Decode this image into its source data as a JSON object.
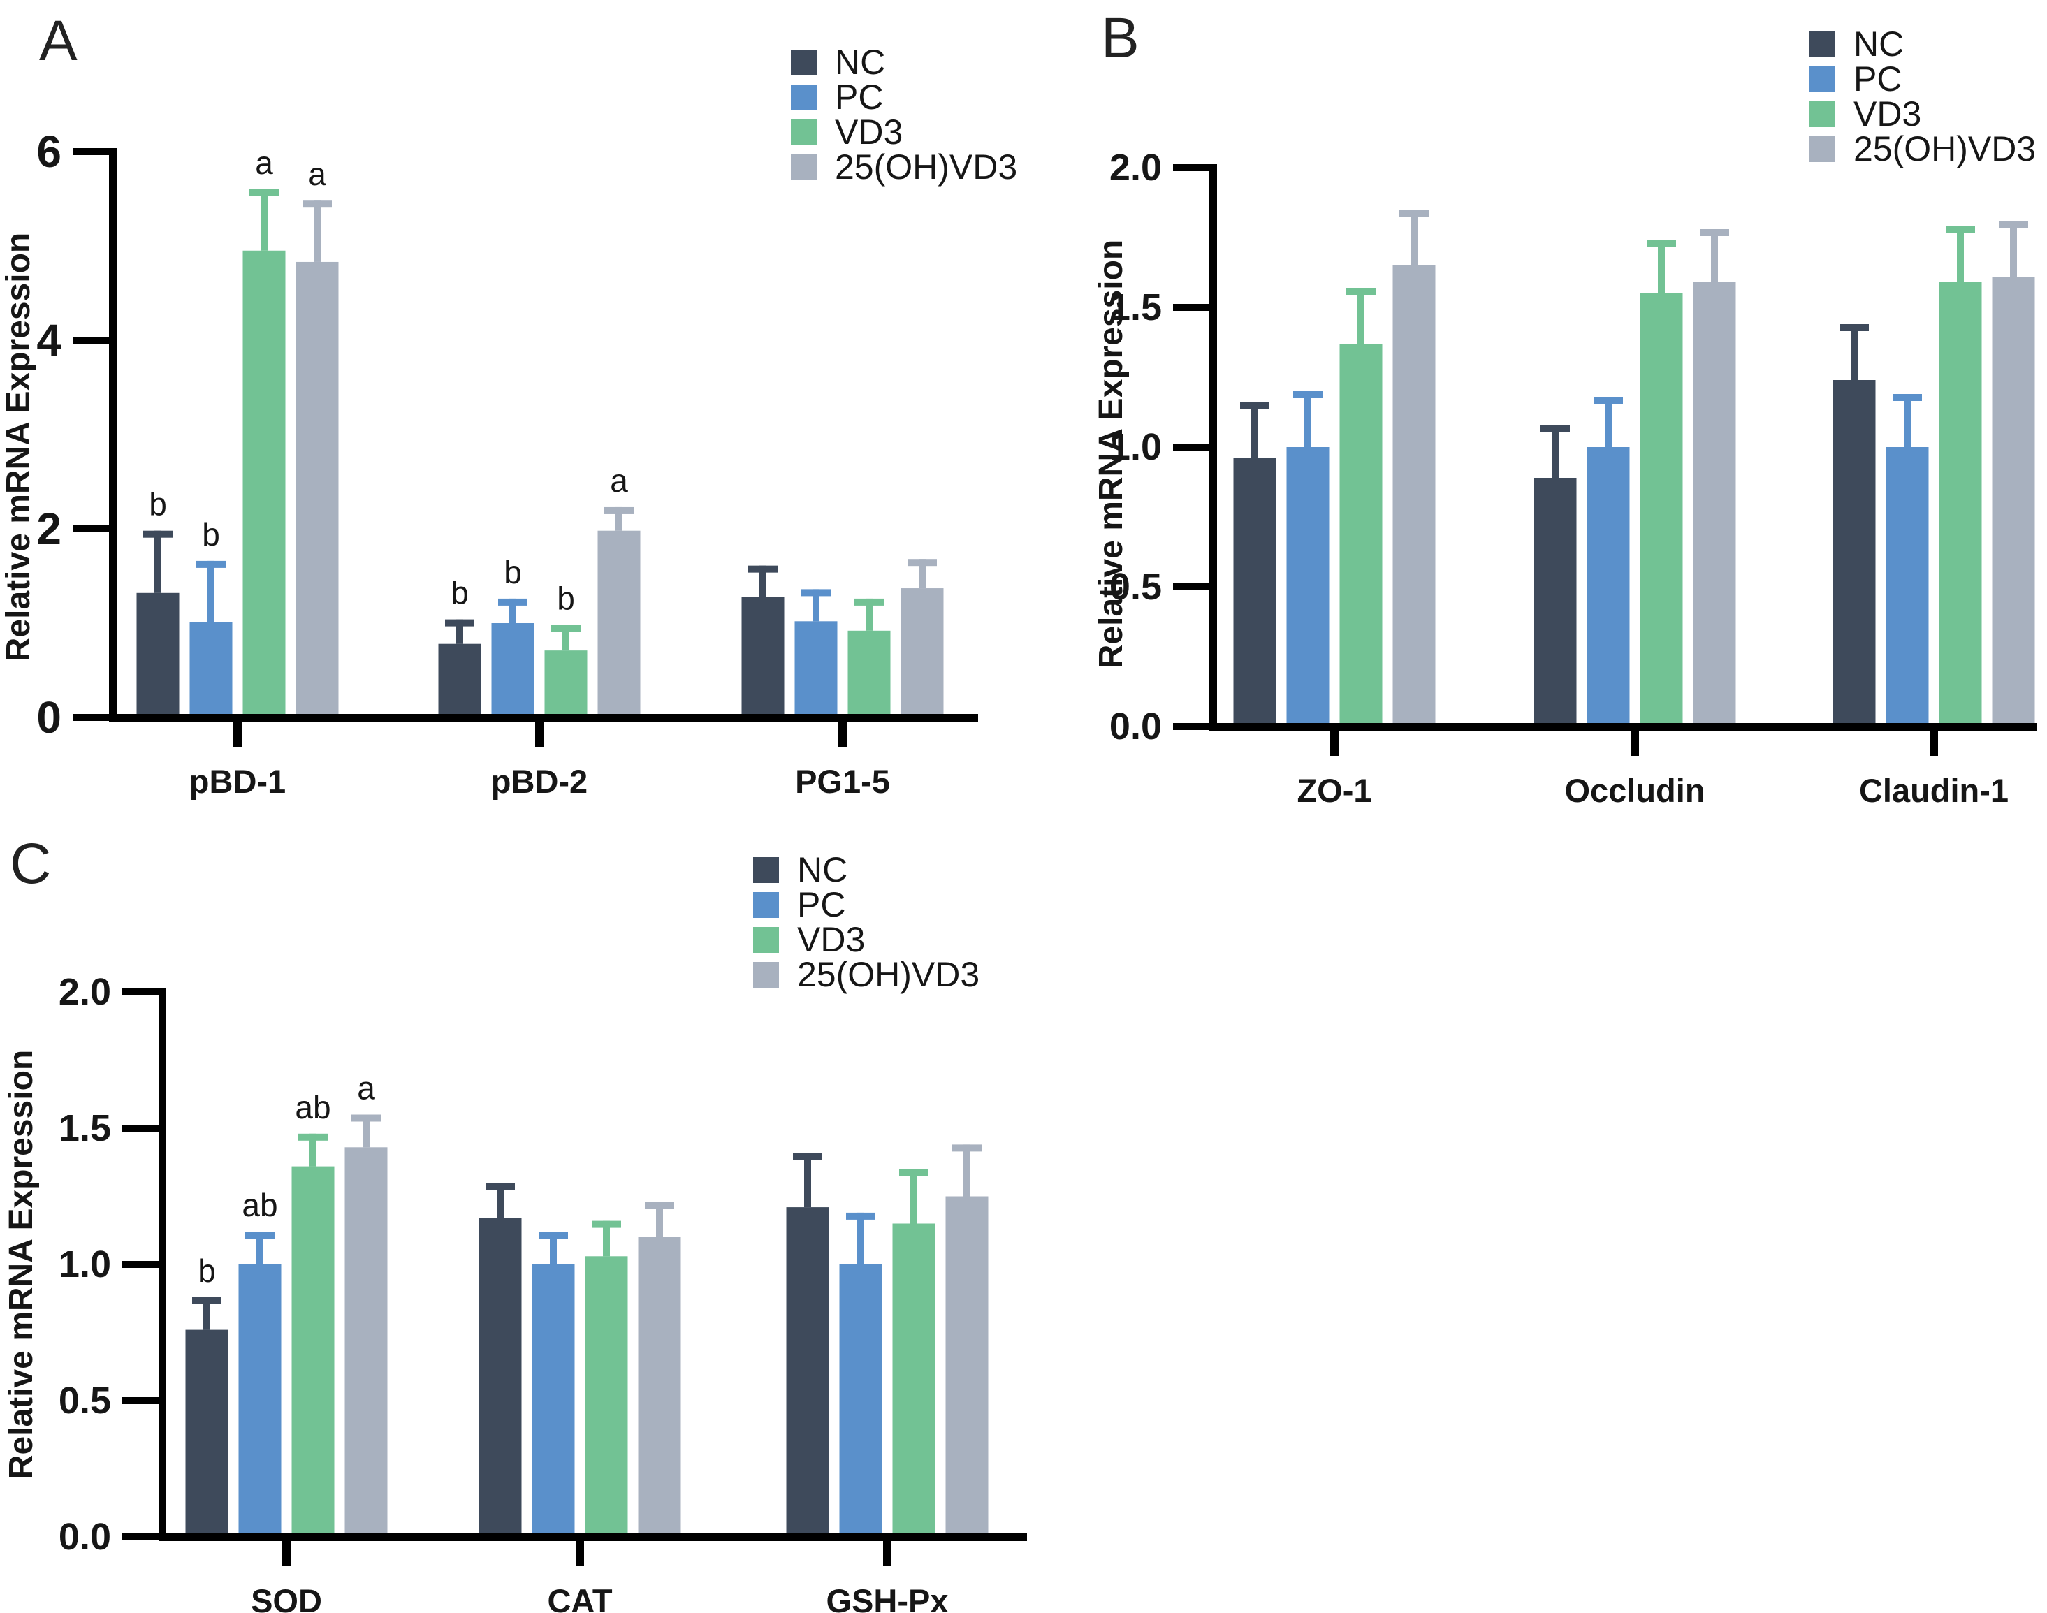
{
  "figure": {
    "background": "#ffffff",
    "axis_color": "#000000",
    "text_color": "#161616",
    "colors": {
      "NC": "#3e4a5b",
      "PC": "#5a90cb",
      "VD3": "#72c294",
      "25(OH)VD3": "#a8b1bf"
    },
    "legend_items": [
      {
        "label": "NC"
      },
      {
        "label": "PC"
      },
      {
        "label": "VD3"
      },
      {
        "label": "25(OH)VD3"
      }
    ]
  },
  "chart_data": [
    {
      "panel": "A",
      "type": "bar",
      "title": "",
      "xlabel": "",
      "ylabel": "Relative mRNA Expression",
      "ylim": [
        0,
        6
      ],
      "yticks": [
        "0",
        "2",
        "4",
        "6"
      ],
      "grid": false,
      "legend_position": "top-right",
      "categories": [
        "pBD-1",
        "pBD-2",
        "PG1-5"
      ],
      "series": [
        {
          "name": "NC",
          "values": [
            1.32,
            0.78,
            1.28
          ],
          "errors": [
            0.66,
            0.26,
            0.33
          ],
          "letters": [
            "b",
            "b",
            ""
          ]
        },
        {
          "name": "PC",
          "values": [
            1.01,
            1.0,
            1.02
          ],
          "errors": [
            0.65,
            0.26,
            0.34
          ],
          "letters": [
            "b",
            "b",
            ""
          ]
        },
        {
          "name": "VD3",
          "values": [
            4.95,
            0.71,
            0.92
          ],
          "errors": [
            0.65,
            0.27,
            0.34
          ],
          "letters": [
            "a",
            "b",
            ""
          ]
        },
        {
          "name": "25(OH)VD3",
          "values": [
            4.83,
            1.98,
            1.37
          ],
          "errors": [
            0.65,
            0.25,
            0.31
          ],
          "letters": [
            "a",
            "a",
            ""
          ]
        }
      ]
    },
    {
      "panel": "B",
      "type": "bar",
      "title": "",
      "xlabel": "",
      "ylabel": "Relative mRNA Expression",
      "ylim": [
        0,
        2
      ],
      "yticks": [
        "0.0",
        "0.5",
        "1.0",
        "1.5",
        "2.0"
      ],
      "grid": false,
      "legend_position": "top-right",
      "categories": [
        "ZO-1",
        "Occludin",
        "Claudin-1"
      ],
      "series": [
        {
          "name": "NC",
          "values": [
            0.96,
            0.89,
            1.24
          ],
          "errors": [
            0.2,
            0.19,
            0.2
          ],
          "letters": [
            "",
            "",
            ""
          ]
        },
        {
          "name": "PC",
          "values": [
            1.0,
            1.0,
            1.0
          ],
          "errors": [
            0.2,
            0.18,
            0.19
          ],
          "letters": [
            "",
            "",
            ""
          ]
        },
        {
          "name": "VD3",
          "values": [
            1.37,
            1.55,
            1.59
          ],
          "errors": [
            0.2,
            0.19,
            0.2
          ],
          "letters": [
            "",
            "",
            ""
          ]
        },
        {
          "name": "25(OH)VD3",
          "values": [
            1.65,
            1.59,
            1.61
          ],
          "errors": [
            0.2,
            0.19,
            0.2
          ],
          "letters": [
            "",
            "",
            ""
          ]
        }
      ]
    },
    {
      "panel": "C",
      "type": "bar",
      "title": "",
      "xlabel": "",
      "ylabel": "Relative mRNA Expression",
      "ylim": [
        0,
        2
      ],
      "yticks": [
        "0.0",
        "0.5",
        "1.0",
        "1.5",
        "2.0"
      ],
      "grid": false,
      "legend_position": "top-right",
      "categories": [
        "SOD",
        "CAT",
        "GSH-Px"
      ],
      "series": [
        {
          "name": "NC",
          "values": [
            0.76,
            1.17,
            1.21
          ],
          "errors": [
            0.12,
            0.13,
            0.2
          ],
          "letters": [
            "b",
            "",
            ""
          ]
        },
        {
          "name": "PC",
          "values": [
            1.0,
            1.0,
            1.0
          ],
          "errors": [
            0.12,
            0.12,
            0.19
          ],
          "letters": [
            "ab",
            "",
            ""
          ]
        },
        {
          "name": "VD3",
          "values": [
            1.36,
            1.03,
            1.15
          ],
          "errors": [
            0.12,
            0.13,
            0.2
          ],
          "letters": [
            "ab",
            "",
            ""
          ]
        },
        {
          "name": "25(OH)VD3",
          "values": [
            1.43,
            1.1,
            1.25
          ],
          "errors": [
            0.12,
            0.13,
            0.19
          ],
          "letters": [
            "a",
            "",
            ""
          ]
        }
      ]
    }
  ]
}
